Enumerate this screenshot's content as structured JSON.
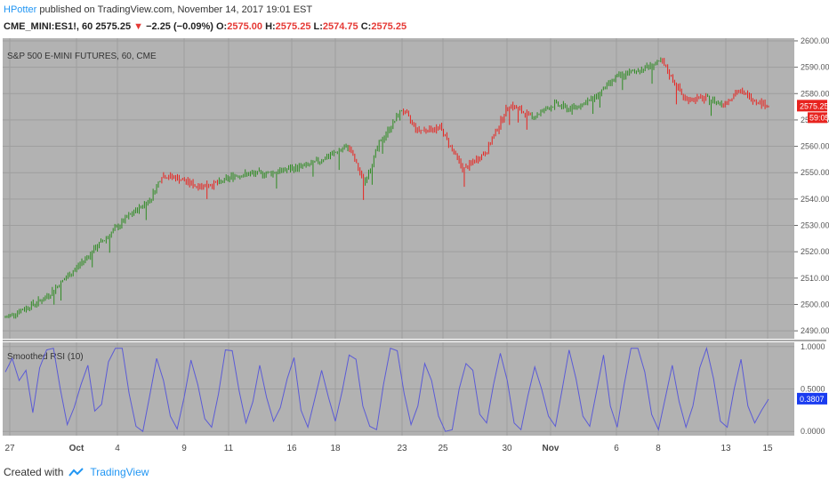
{
  "header": {
    "author": "HPotter",
    "published_text": " published on TradingView.com, November 14, 2017 19:01 EST"
  },
  "ticker_line": {
    "symbol": "CME_MINI:ES1!, 60",
    "last": "2575.25",
    "change": "−2.25 (−0.09%)",
    "open_label": "O:",
    "open": "2575.00",
    "high_label": "H:",
    "high": "2575.25",
    "low_label": "L:",
    "low": "2574.75",
    "close_label": "C:",
    "close": "2575.25"
  },
  "footer": {
    "created_with": "Created with",
    "brand": "TradingView"
  },
  "colors": {
    "plot_bg": "#b2b2b2",
    "up": "#2e8b22",
    "down": "#e8231f",
    "rsi_line": "#5b5bd6",
    "price_tag": "#e8231f",
    "rsi_tag": "#1a3cf0"
  },
  "chart_data": [
    {
      "type": "bar",
      "title": "S&P 500 E-MINI FUTURES, 60, CME",
      "ylim": [
        2487,
        2601
      ],
      "y_ticks": [
        "2600.00",
        "2590.00",
        "2580.00",
        "2570.00",
        "2560.00",
        "2550.00",
        "2540.00",
        "2530.00",
        "2520.00",
        "2510.00",
        "2500.00",
        "2490.00"
      ],
      "x_ticks": [
        "27",
        "Oct",
        "4",
        "9",
        "11",
        "16",
        "18",
        "23",
        "25",
        "30",
        "Nov",
        "6",
        "8",
        "13",
        "15"
      ],
      "last_price_label": "2575.25",
      "countdown_label": "59:05",
      "price_path": [
        {
          "t": 0,
          "p": 2495,
          "trend": "up"
        },
        {
          "t": 0.05,
          "p": 2502,
          "trend": "up"
        },
        {
          "t": 0.09,
          "p": 2513,
          "trend": "up"
        },
        {
          "t": 0.12,
          "p": 2522,
          "trend": "up"
        },
        {
          "t": 0.16,
          "p": 2533,
          "trend": "up"
        },
        {
          "t": 0.19,
          "p": 2540,
          "trend": "up"
        },
        {
          "t": 0.205,
          "p": 2549,
          "trend": "up"
        },
        {
          "t": 0.225,
          "p": 2548,
          "trend": "down"
        },
        {
          "t": 0.25,
          "p": 2545,
          "trend": "down"
        },
        {
          "t": 0.28,
          "p": 2546,
          "trend": "down"
        },
        {
          "t": 0.3,
          "p": 2549,
          "trend": "up"
        },
        {
          "t": 0.35,
          "p": 2550,
          "trend": "up"
        },
        {
          "t": 0.4,
          "p": 2553,
          "trend": "up"
        },
        {
          "t": 0.45,
          "p": 2560,
          "trend": "up"
        },
        {
          "t": 0.47,
          "p": 2546,
          "trend": "down"
        },
        {
          "t": 0.49,
          "p": 2561,
          "trend": "up"
        },
        {
          "t": 0.52,
          "p": 2574,
          "trend": "up"
        },
        {
          "t": 0.54,
          "p": 2566,
          "trend": "down"
        },
        {
          "t": 0.57,
          "p": 2567,
          "trend": "down"
        },
        {
          "t": 0.6,
          "p": 2551,
          "trend": "down"
        },
        {
          "t": 0.63,
          "p": 2558,
          "trend": "down"
        },
        {
          "t": 0.66,
          "p": 2576,
          "trend": "down"
        },
        {
          "t": 0.69,
          "p": 2571,
          "trend": "down"
        },
        {
          "t": 0.72,
          "p": 2576,
          "trend": "up"
        },
        {
          "t": 0.74,
          "p": 2574,
          "trend": "up"
        },
        {
          "t": 0.77,
          "p": 2578,
          "trend": "up"
        },
        {
          "t": 0.8,
          "p": 2586,
          "trend": "up"
        },
        {
          "t": 0.84,
          "p": 2590,
          "trend": "up"
        },
        {
          "t": 0.86,
          "p": 2592,
          "trend": "up"
        },
        {
          "t": 0.89,
          "p": 2578,
          "trend": "down"
        },
        {
          "t": 0.92,
          "p": 2578,
          "trend": "down"
        },
        {
          "t": 0.94,
          "p": 2576,
          "trend": "up"
        },
        {
          "t": 0.96,
          "p": 2581,
          "trend": "down"
        },
        {
          "t": 0.98,
          "p": 2578,
          "trend": "down"
        },
        {
          "t": 1.0,
          "p": 2575.25,
          "trend": "down"
        }
      ]
    },
    {
      "type": "line",
      "title": "Smoothed RSI (10)",
      "ylim": [
        -0.05,
        1.05
      ],
      "y_ticks": [
        "1.0000",
        "0.5000",
        "0.0000"
      ],
      "last_value_label": "0.3807",
      "series": [
        {
          "values": [
            0.7,
            0.86,
            0.6,
            0.72,
            0.22,
            0.75,
            0.96,
            0.98,
            0.5,
            0.08,
            0.28,
            0.55,
            0.78,
            0.24,
            0.32,
            0.82,
            0.98,
            0.98,
            0.45,
            0.06,
            0.0,
            0.42,
            0.86,
            0.6,
            0.18,
            0.03,
            0.4,
            0.84,
            0.55,
            0.15,
            0.05,
            0.44,
            0.96,
            0.95,
            0.48,
            0.1,
            0.35,
            0.78,
            0.4,
            0.12,
            0.28,
            0.62,
            0.87,
            0.25,
            0.05,
            0.38,
            0.72,
            0.4,
            0.12,
            0.48,
            0.9,
            0.85,
            0.3,
            0.06,
            0.02,
            0.55,
            0.98,
            0.95,
            0.45,
            0.08,
            0.3,
            0.8,
            0.6,
            0.18,
            0.0,
            0.02,
            0.5,
            0.8,
            0.72,
            0.2,
            0.1,
            0.55,
            0.92,
            0.6,
            0.1,
            0.02,
            0.42,
            0.76,
            0.5,
            0.18,
            0.06,
            0.5,
            0.96,
            0.62,
            0.18,
            0.06,
            0.48,
            0.9,
            0.3,
            0.05,
            0.55,
            0.98,
            0.98,
            0.7,
            0.2,
            0.02,
            0.4,
            0.78,
            0.35,
            0.05,
            0.3,
            0.75,
            0.98,
            0.62,
            0.12,
            0.05,
            0.5,
            0.85,
            0.3,
            0.1,
            0.25,
            0.38
          ]
        }
      ]
    }
  ]
}
